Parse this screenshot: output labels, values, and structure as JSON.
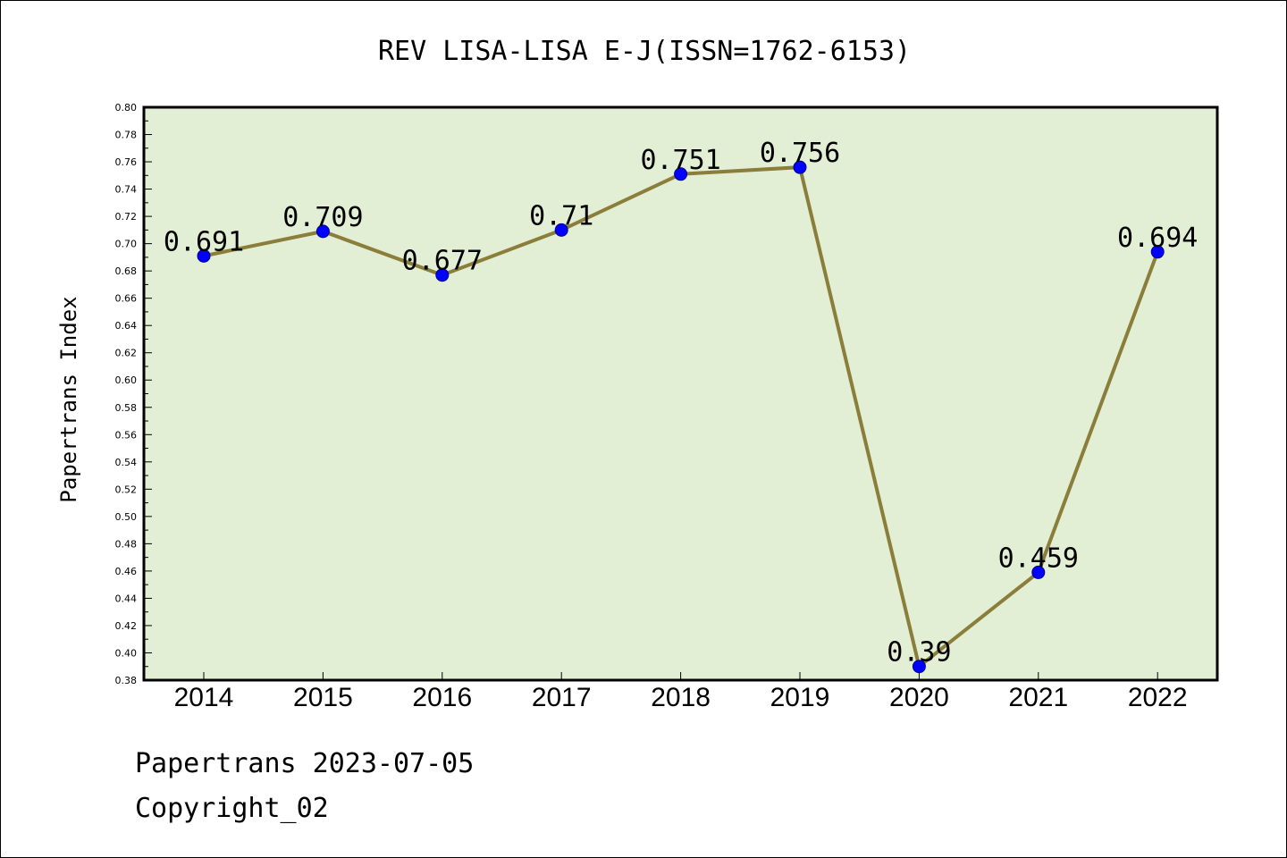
{
  "chart_data": {
    "type": "line",
    "title": "REV LISA-LISA E-J(ISSN=1762-6153)",
    "xlabel": "",
    "ylabel": "Papertrans Index",
    "categories": [
      "2014",
      "2015",
      "2016",
      "2017",
      "2018",
      "2019",
      "2020",
      "2021",
      "2022"
    ],
    "series": [
      {
        "values": [
          0.691,
          0.709,
          0.677,
          0.71,
          0.751,
          0.756,
          0.39,
          0.459,
          0.694
        ],
        "labels": [
          "0.691",
          "0.709",
          "0.677",
          "0.71",
          "0.751",
          "0.756",
          "0.39",
          "0.459",
          "0.694"
        ],
        "line_color": "#8b7d3a",
        "marker_color": "#0000ff"
      }
    ],
    "ylim": [
      0.38,
      0.8
    ],
    "yticks": [
      "0.38",
      "0.40",
      "0.42",
      "0.44",
      "0.46",
      "0.48",
      "0.50",
      "0.52",
      "0.54",
      "0.56",
      "0.58",
      "0.60",
      "0.62",
      "0.64",
      "0.66",
      "0.68",
      "0.70",
      "0.72",
      "0.74",
      "0.76",
      "0.78",
      "0.80"
    ],
    "grid": false,
    "legend": "none",
    "plot_background": "#e2efd4"
  },
  "footer": {
    "line1": "Papertrans 2023-07-05",
    "line2": "Copyright_02"
  }
}
